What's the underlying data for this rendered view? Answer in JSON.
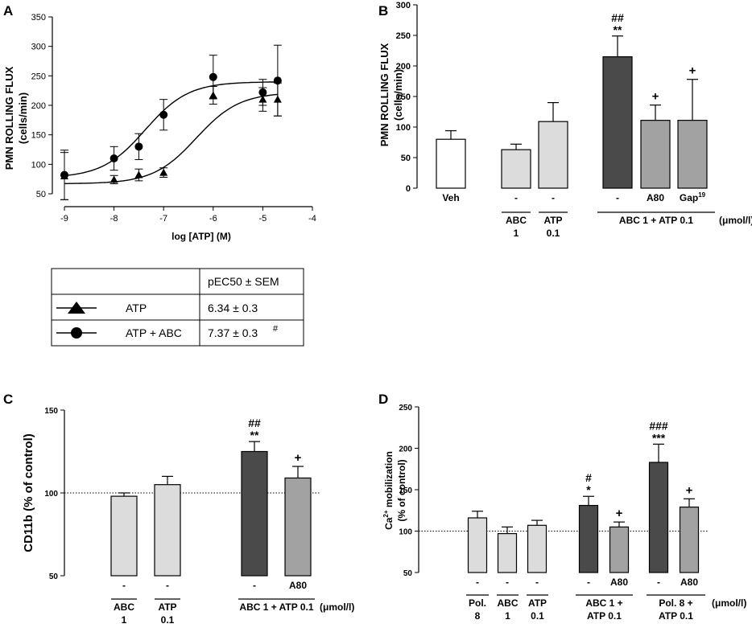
{
  "colors": {
    "white": "#ffffff",
    "light": "#dcdcdc",
    "medium": "#a2a2a2",
    "dark": "#4a4a4a"
  },
  "chart_data": [
    {
      "panel": "A",
      "type": "scatter",
      "xlabel": "log [ATP] (M)",
      "ylabel_line1": "PMN ROLLING FLUX",
      "ylabel_line2": "(cells/min)",
      "xlim": [
        -9,
        -4
      ],
      "ylim": [
        50,
        350
      ],
      "xticks": [
        -9,
        -8,
        -7,
        -6,
        -5,
        -4
      ],
      "yticks": [
        50,
        100,
        150,
        200,
        250,
        300,
        350
      ],
      "xtick_labels": [
        "-9",
        "-8",
        "-7",
        "-6",
        "-5",
        "-4"
      ],
      "ytick_labels": [
        "50",
        "100",
        "150",
        "200",
        "250",
        "300",
        "350"
      ],
      "series": [
        {
          "name": "ATP",
          "marker": "triangle",
          "x": [
            -9,
            -8,
            -7.5,
            -7,
            -6,
            -5,
            -4.7
          ],
          "y": [
            80,
            74,
            82,
            86,
            217,
            210,
            210
          ],
          "err": [
            40,
            7,
            10,
            8,
            15,
            20,
            28
          ],
          "curve": {
            "bottom": 67,
            "top": 222,
            "logEC50": -6.34
          }
        },
        {
          "name": "ATP + ABC",
          "marker": "circle",
          "x": [
            -9,
            -8,
            -7.5,
            -7,
            -6,
            -5,
            -4.7
          ],
          "y": [
            82,
            110,
            130,
            184,
            248,
            222,
            242
          ],
          "err": [
            42,
            20,
            22,
            26,
            37,
            22,
            60
          ],
          "curve": {
            "bottom": 77,
            "top": 240,
            "logEC50": -7.37
          }
        }
      ],
      "table": {
        "header": "pEC50 ± SEM",
        "rows": [
          {
            "label": "ATP",
            "value": "6.34 ± 0.3",
            "mark": ""
          },
          {
            "label": "ATP + ABC",
            "value": "7.37 ± 0.3",
            "mark": "#"
          }
        ]
      }
    },
    {
      "panel": "B",
      "type": "bar",
      "ylabel_line1": "PMN ROLLING FLUX",
      "ylabel_line2": "(cells/min)",
      "ylim": [
        0,
        300
      ],
      "yticks": [
        0,
        50,
        100,
        150,
        200,
        250,
        300
      ],
      "ytick_labels": [
        "0",
        "50",
        "100",
        "150",
        "200",
        "250",
        "300"
      ],
      "bars": [
        {
          "label": "Veh",
          "value": 80,
          "err": 14,
          "color": "white",
          "sig_top": "",
          "sig_bottom": ""
        },
        {
          "label": "-",
          "value": 63,
          "err": 9,
          "color": "light",
          "sig_top": "",
          "sig_bottom": ""
        },
        {
          "label": "-",
          "value": 109,
          "err": 31,
          "color": "light",
          "sig_top": "",
          "sig_bottom": ""
        },
        {
          "label": "-",
          "value": 215,
          "err": 34,
          "color": "dark",
          "sig_top": "##",
          "sig_bottom": "**"
        },
        {
          "label": "A80",
          "value": 111,
          "err": 25,
          "color": "medium",
          "sig_top": "",
          "sig_bottom": "+"
        },
        {
          "label": "Gap",
          "label_sup": "19",
          "value": 111,
          "err": 67,
          "color": "medium",
          "sig_top": "",
          "sig_bottom": "+"
        }
      ],
      "groups": [
        {
          "line1": "ABC",
          "line2": "1"
        },
        {
          "line1": "ATP",
          "line2": "0.1"
        },
        {
          "line1": "ABC 1 + ATP 0.1",
          "line2": ""
        }
      ],
      "unit": "(μmol/l)"
    },
    {
      "panel": "C",
      "type": "bar",
      "ylabel": "CD11b (% of control)",
      "ylim": [
        50,
        150
      ],
      "yticks": [
        50,
        100,
        150
      ],
      "ytick_labels": [
        "50",
        "100",
        "150"
      ],
      "reference_line": 100,
      "bars": [
        {
          "label": "-",
          "value": 98,
          "err": 2,
          "color": "light",
          "sig_top": "",
          "sig_bottom": ""
        },
        {
          "label": "-",
          "value": 105,
          "err": 5,
          "color": "light",
          "sig_top": "",
          "sig_bottom": ""
        },
        {
          "label": "-",
          "value": 125,
          "err": 6,
          "color": "dark",
          "sig_top": "##",
          "sig_bottom": "**"
        },
        {
          "label": "A80",
          "value": 109,
          "err": 7,
          "color": "medium",
          "sig_top": "",
          "sig_bottom": "+"
        }
      ],
      "groups": [
        {
          "line1": "ABC",
          "line2": "1"
        },
        {
          "line1": "ATP",
          "line2": "0.1"
        },
        {
          "line1": "ABC 1 + ATP 0.1",
          "line2": ""
        }
      ],
      "unit": "(μmol/l)"
    },
    {
      "panel": "D",
      "type": "bar",
      "ylabel_pre": "Ca",
      "ylabel_sup": "2+",
      "ylabel_post": " mobilization",
      "ylabel_line2": "(% of control)",
      "ylim": [
        50,
        250
      ],
      "yticks": [
        50,
        100,
        150,
        200,
        250
      ],
      "ytick_labels": [
        "50",
        "100",
        "150",
        "200",
        "250"
      ],
      "reference_line": 100,
      "bars": [
        {
          "label": "-",
          "value": 116,
          "err": 8,
          "color": "light",
          "sig_top": "",
          "sig_bottom": ""
        },
        {
          "label": "-",
          "value": 97,
          "err": 8,
          "color": "light",
          "sig_top": "",
          "sig_bottom": ""
        },
        {
          "label": "-",
          "value": 107,
          "err": 6,
          "color": "light",
          "sig_top": "",
          "sig_bottom": ""
        },
        {
          "label": "-",
          "value": 131,
          "err": 11,
          "color": "dark",
          "sig_top": "#",
          "sig_bottom": "*"
        },
        {
          "label": "A80",
          "value": 105,
          "err": 6,
          "color": "medium",
          "sig_top": "",
          "sig_bottom": "+"
        },
        {
          "label": "-",
          "value": 183,
          "err": 22,
          "color": "dark",
          "sig_top": "###",
          "sig_bottom": "***"
        },
        {
          "label": "A80",
          "value": 129,
          "err": 10,
          "color": "medium",
          "sig_top": "",
          "sig_bottom": "+"
        }
      ],
      "groups": [
        {
          "line1": "Pol.",
          "line2": "8"
        },
        {
          "line1": "ABC",
          "line2": "1"
        },
        {
          "line1": "ATP",
          "line2": "0.1"
        },
        {
          "line1": "ABC 1 +",
          "line2": "ATP 0.1"
        },
        {
          "line1": "Pol. 8 +",
          "line2": "ATP 0.1"
        }
      ],
      "unit": "(μmol/l)"
    }
  ]
}
